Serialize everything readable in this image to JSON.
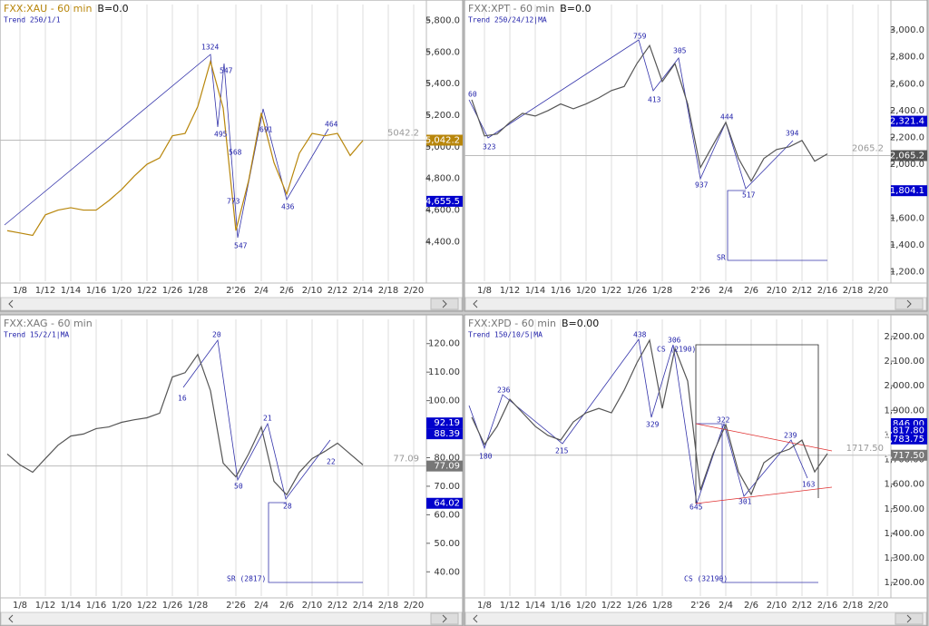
{
  "chart_data": [
    {
      "type": "line",
      "title": "FXX:XAU - 60 min",
      "title_suffix": "B=0.0",
      "title_color": "#b8860b",
      "subtitle": "Trend 250/1/1",
      "categories": [
        null,
        "1/8",
        null,
        "1/12",
        null,
        "1/14",
        null,
        "1/16",
        null,
        "1/20",
        null,
        "1/22",
        null,
        "1/26",
        null,
        "1/28",
        null,
        null,
        "2'26",
        null,
        "2/4",
        null,
        "2/6",
        null,
        "2/10",
        null,
        "2/12",
        null,
        "2/14",
        null,
        "2/18",
        null,
        "2/20",
        null
      ],
      "values": [
        4470,
        4455,
        4440,
        4570,
        4600,
        4615,
        4600,
        4600,
        4660,
        4730,
        4815,
        4890,
        4930,
        5070,
        5085,
        5255,
        5540,
        5245,
        4470,
        4785,
        5215,
        4900,
        4700,
        4960,
        5085,
        5070,
        5085,
        4945,
        5040,
        null,
        null,
        null,
        null,
        null
      ],
      "color": "#b8860b",
      "ylim": [
        4150,
        5900
      ],
      "grid": true,
      "yticks": [
        {
          "value": 4400,
          "label": "4,400.0"
        },
        {
          "value": 4600,
          "label": "4,600.0"
        },
        {
          "value": 4800,
          "label": "4,800.0"
        },
        {
          "value": 5000,
          "label": "5,000.0"
        },
        {
          "value": 5200,
          "label": "5,200.0"
        },
        {
          "value": 5400,
          "label": "5,400.0"
        },
        {
          "value": 5600,
          "label": "5,600.0"
        },
        {
          "value": 5800,
          "label": "5,800.0"
        }
      ],
      "price_line": {
        "value": 5042.2,
        "label": "5042.2"
      },
      "markers": [
        {
          "value": 5042.2,
          "label": "5,042.2",
          "color": "#b8860b"
        },
        {
          "value": 4655.5,
          "label": "4,655.5",
          "color": "#0000cc"
        }
      ],
      "annotations": [
        "1324",
        "495",
        "547",
        "568",
        "773",
        "547",
        "691",
        "436",
        "464"
      ]
    },
    {
      "type": "line",
      "title": "FXX:XPT - 60 min",
      "title_suffix": "B=0.0",
      "title_color": "#777777",
      "subtitle": "Trend 250/24/12|MA",
      "categories": [
        null,
        "1/8",
        null,
        "1/12",
        null,
        "1/14",
        null,
        "1/16",
        null,
        "1/20",
        null,
        "1/22",
        null,
        "1/26",
        null,
        "1/28",
        null,
        null,
        "2'26",
        null,
        "2/4",
        null,
        "2/6",
        null,
        "2/10",
        null,
        "2/12",
        null,
        "2/16",
        null,
        "2/18",
        null,
        "2/20",
        null
      ],
      "values": [
        2481,
        2212,
        2226,
        2313,
        2380,
        2360,
        2400,
        2450,
        2414,
        2450,
        2495,
        2550,
        2580,
        2750,
        2885,
        2616,
        2750,
        2450,
        1976,
        2145,
        2313,
        2044,
        1875,
        2044,
        2111,
        2131,
        2178,
        2024,
        2078,
        null,
        null,
        null,
        null,
        null
      ],
      "color": "#555555",
      "ylim": [
        1130,
        3190
      ],
      "grid": true,
      "yticks": [
        {
          "value": 1200,
          "label": "1,200.0"
        },
        {
          "value": 1400,
          "label": "1,400.0"
        },
        {
          "value": 1600,
          "label": "1,600.0"
        },
        {
          "value": 1800,
          "label": "1,800.0"
        },
        {
          "value": 2000,
          "label": "2,000.0"
        },
        {
          "value": 2200,
          "label": "2,200.0"
        },
        {
          "value": 2400,
          "label": "2,400.0"
        },
        {
          "value": 2600,
          "label": "2,600.0"
        },
        {
          "value": 2800,
          "label": "2,800.0"
        },
        {
          "value": 3000,
          "label": "3,000.0"
        }
      ],
      "price_line": {
        "value": 2065.2,
        "label": "2065.2"
      },
      "markers": [
        {
          "value": 2321.4,
          "label": "2,321.4",
          "color": "#0000cc"
        },
        {
          "value": 2065.2,
          "label": "2,065.2",
          "color": "#555555"
        },
        {
          "value": 1804.1,
          "label": "1,804.1",
          "color": "#0000cc"
        }
      ],
      "annotations": [
        "60",
        "323",
        "759",
        "413",
        "305",
        "937",
        "444",
        "517",
        "394",
        "SR"
      ]
    },
    {
      "type": "line",
      "title": "FXX:XAG - 60 min",
      "title_suffix": "",
      "title_color": "#777777",
      "subtitle": "Trend 15/2/1|MA",
      "categories": [
        null,
        "1/8",
        null,
        "1/12",
        null,
        "1/14",
        null,
        "1/16",
        null,
        "1/20",
        null,
        "1/22",
        null,
        "1/26",
        null,
        "1/28",
        null,
        null,
        "2'26",
        null,
        "2/4",
        null,
        "2/6",
        null,
        "2/10",
        null,
        "2/12",
        null,
        "2/14",
        null,
        "2/18",
        null,
        "2/20",
        null
      ],
      "values": [
        81.3,
        77.5,
        74.9,
        79.7,
        84.4,
        87.6,
        88.3,
        90.2,
        90.8,
        92.4,
        93.3,
        94.0,
        95.6,
        108.3,
        109.8,
        116.2,
        103.5,
        78.1,
        73.3,
        81.3,
        90.8,
        71.7,
        67.0,
        74.9,
        79.7,
        82.2,
        85.1,
        81.3,
        77.5,
        null,
        null,
        null,
        null,
        null
      ],
      "color": "#555555",
      "ylim": [
        31.5,
        128.5
      ],
      "grid": true,
      "yticks": [
        {
          "value": 40,
          "label": "40.00"
        },
        {
          "value": 50,
          "label": "50.00"
        },
        {
          "value": 60,
          "label": "60.00"
        },
        {
          "value": 70,
          "label": "70.00"
        },
        {
          "value": 80,
          "label": "80.00"
        },
        {
          "value": 90,
          "label": "90.00"
        },
        {
          "value": 100,
          "label": "100.00"
        },
        {
          "value": 110,
          "label": "110.00"
        },
        {
          "value": 120,
          "label": "120.00"
        }
      ],
      "price_line": {
        "value": 77.09,
        "label": "77.09"
      },
      "markers": [
        {
          "value": 92.19,
          "label": "92.19",
          "color": "#0000cc"
        },
        {
          "value": 88.39,
          "label": "88.39",
          "color": "#0000cc"
        },
        {
          "value": 77.09,
          "label": "77.09",
          "color": "#777777"
        },
        {
          "value": 64.02,
          "label": "64.02",
          "color": "#0000cc"
        }
      ],
      "annotations": [
        "16",
        "20",
        "50",
        "21",
        "28",
        "22",
        "SR (2817)"
      ]
    },
    {
      "type": "line",
      "title": "FXX:XPD - 60 min",
      "title_suffix": "B=0.00",
      "title_color": "#777777",
      "subtitle": "Trend 150/10/5|MA",
      "categories": [
        null,
        "1/8",
        null,
        "1/12",
        null,
        "1/14",
        null,
        "1/16",
        null,
        "1/20",
        null,
        "1/22",
        null,
        "1/26",
        null,
        "1/28",
        null,
        null,
        "2'26",
        null,
        "2/4",
        null,
        "2/6",
        null,
        "2/10",
        null,
        "2/12",
        null,
        "2/16",
        null,
        "2/18",
        null,
        "2/20",
        null
      ],
      "values": [
        1872,
        1761,
        1835,
        1945,
        1890,
        1835,
        1798,
        1779,
        1853,
        1890,
        1908,
        1890,
        1982,
        2093,
        2185,
        1908,
        2152,
        2019,
        1576,
        1724,
        1842,
        1650,
        1558,
        1687,
        1724,
        1742,
        1779,
        1650,
        1724,
        null,
        null,
        null,
        null,
        null
      ],
      "color": "#555555",
      "ylim": [
        1145,
        2270
      ],
      "grid": true,
      "yticks": [
        {
          "value": 1200,
          "label": "1,200.00"
        },
        {
          "value": 1300,
          "label": "1,300.00"
        },
        {
          "value": 1400,
          "label": "1,400.00"
        },
        {
          "value": 1500,
          "label": "1,500.00"
        },
        {
          "value": 1600,
          "label": "1,600.00"
        },
        {
          "value": 1700,
          "label": "1,700.00"
        },
        {
          "value": 1800,
          "label": "1,800.00"
        },
        {
          "value": 1900,
          "label": "1,900.00"
        },
        {
          "value": 2000,
          "label": "2,000.00"
        },
        {
          "value": 2100,
          "label": "2,100.00"
        },
        {
          "value": 2200,
          "label": "2,200.00"
        }
      ],
      "price_line": {
        "value": 1717.5,
        "label": "1717.50"
      },
      "markers": [
        {
          "value": 1846,
          "label": "1,846.00",
          "color": "#0000cc"
        },
        {
          "value": 1817.8,
          "label": "1,817.80",
          "color": "#0000cc"
        },
        {
          "value": 1783.75,
          "label": "1,783.75",
          "color": "#0000cc"
        },
        {
          "value": 1717.5,
          "label": "1,717.50",
          "color": "#777777"
        }
      ],
      "annotations": [
        "180",
        "236",
        "215",
        "438",
        "329",
        "306",
        "CS (2190)",
        "322",
        "239",
        "301",
        "163",
        "645",
        "CS (32190)"
      ]
    }
  ]
}
